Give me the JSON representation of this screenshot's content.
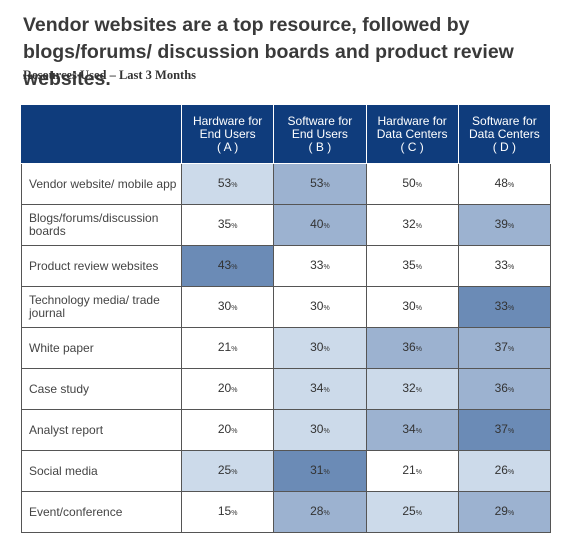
{
  "title": "Vendor websites are a top resource, followed by blogs/forums/ discussion boards and product review websites.",
  "subtitle": "Resources Used – Last 3 Months",
  "chart_data": {
    "type": "table",
    "title": "Vendor websites are a top resource, followed by blogs/forums/ discussion boards and product review websites.",
    "subtitle": "Resources Used – Last 3 Months",
    "columns": [
      {
        "line1": "Hardware for",
        "line2": "End Users",
        "line3": "( A )"
      },
      {
        "line1": "Software for",
        "line2": "End Users",
        "line3": "( B )"
      },
      {
        "line1": "Hardware for",
        "line2": "Data Centers",
        "line3": "( C )"
      },
      {
        "line1": "Software for",
        "line2": "Data Centers",
        "line3": "( D )"
      }
    ],
    "unit": "%",
    "rows": [
      {
        "label": "Vendor website/ mobile app",
        "values": [
          53,
          53,
          50,
          48
        ],
        "shade": [
          1,
          2,
          0,
          0
        ]
      },
      {
        "label": "Blogs/forums/discussion boards",
        "values": [
          35,
          40,
          32,
          39
        ],
        "shade": [
          0,
          2,
          0,
          2
        ]
      },
      {
        "label": "Product review websites",
        "values": [
          43,
          33,
          35,
          33
        ],
        "shade": [
          3,
          0,
          0,
          0
        ]
      },
      {
        "label": "Technology media/ trade journal",
        "values": [
          30,
          30,
          30,
          33
        ],
        "shade": [
          0,
          0,
          0,
          3
        ]
      },
      {
        "label": "White paper",
        "values": [
          21,
          30,
          36,
          37
        ],
        "shade": [
          0,
          1,
          2,
          2
        ]
      },
      {
        "label": "Case study",
        "values": [
          20,
          34,
          32,
          36
        ],
        "shade": [
          0,
          1,
          1,
          2
        ]
      },
      {
        "label": "Analyst report",
        "values": [
          20,
          30,
          34,
          37
        ],
        "shade": [
          0,
          1,
          2,
          3
        ]
      },
      {
        "label": "Social media",
        "values": [
          25,
          31,
          21,
          26
        ],
        "shade": [
          1,
          3,
          0,
          1
        ]
      },
      {
        "label": "Event/conference",
        "values": [
          15,
          28,
          25,
          29
        ],
        "shade": [
          0,
          2,
          1,
          2
        ]
      }
    ],
    "shade_colors": [
      "#ffffff",
      "#ccdaea",
      "#9cb2d0",
      "#6b8bb6"
    ]
  },
  "colors": {
    "header_bg": "#0f3c7c",
    "header_text": "#ffffff"
  }
}
